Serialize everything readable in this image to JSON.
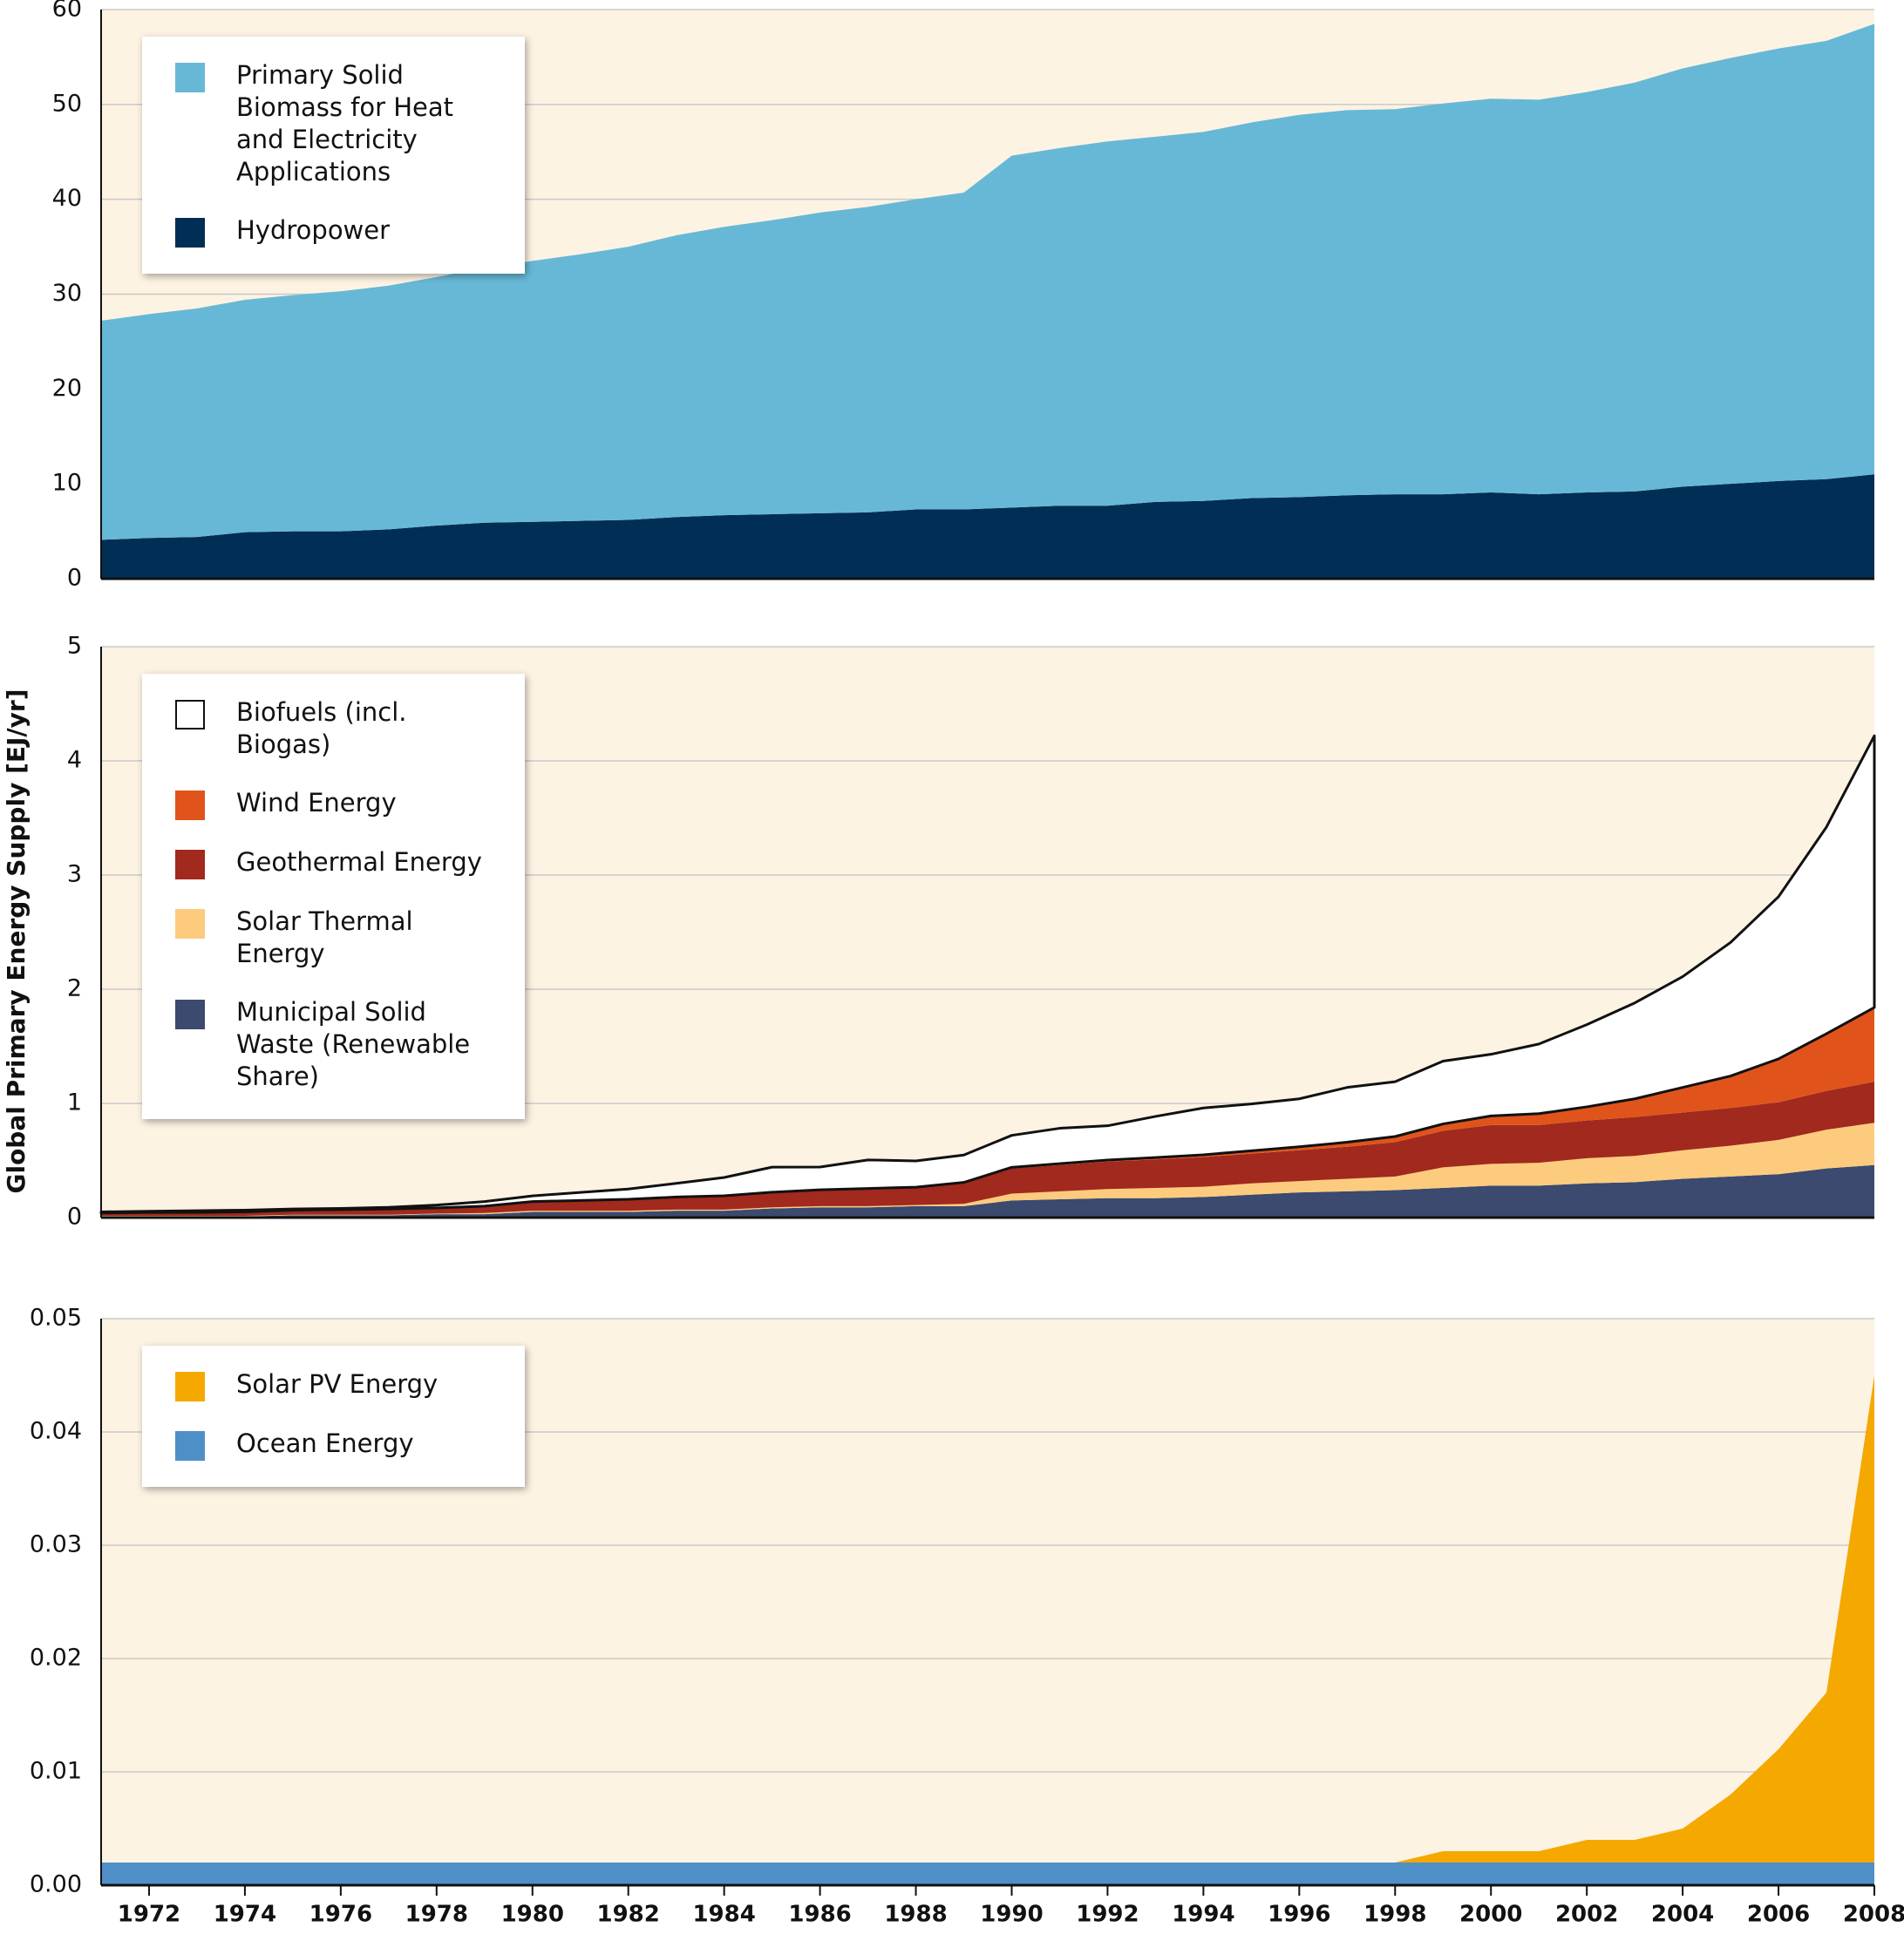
{
  "y_axis_label": "Global Primary Energy Supply [EJ/yr]",
  "chart_data": [
    {
      "type": "stacked_area",
      "legend": "upper left",
      "grid": true,
      "x": [
        1971,
        1972,
        1973,
        1974,
        1975,
        1976,
        1977,
        1978,
        1979,
        1980,
        1981,
        1982,
        1983,
        1984,
        1985,
        1986,
        1987,
        1988,
        1989,
        1990,
        1991,
        1992,
        1993,
        1994,
        1995,
        1996,
        1997,
        1998,
        1999,
        2000,
        2001,
        2002,
        2003,
        2004,
        2005,
        2006,
        2007,
        2008
      ],
      "xlim": [
        1971,
        2008
      ],
      "ylim": [
        0,
        60
      ],
      "yticks": [
        0,
        10,
        20,
        30,
        40,
        50,
        60
      ],
      "series": [
        {
          "name": "Hydropower",
          "color": "#002e55",
          "values": [
            4.1,
            4.3,
            4.4,
            4.9,
            5.0,
            5.0,
            5.2,
            5.6,
            5.9,
            6.0,
            6.1,
            6.2,
            6.5,
            6.7,
            6.8,
            6.9,
            7.0,
            7.3,
            7.3,
            7.5,
            7.7,
            7.7,
            8.1,
            8.2,
            8.5,
            8.6,
            8.8,
            8.9,
            8.9,
            9.1,
            8.9,
            9.1,
            9.2,
            9.7,
            10.0,
            10.3,
            10.5,
            11.0
          ]
        },
        {
          "name": "Primary Solid Biomass for Heat and Electricity Applications",
          "color": "#67b8d6",
          "values": [
            23.1,
            23.6,
            24.1,
            24.5,
            24.9,
            25.3,
            25.7,
            26.2,
            26.9,
            27.5,
            28.1,
            28.8,
            29.7,
            30.4,
            31.0,
            31.7,
            32.2,
            32.7,
            33.4,
            37.1,
            37.7,
            38.4,
            38.5,
            38.9,
            39.6,
            40.3,
            40.6,
            40.6,
            41.2,
            41.5,
            41.6,
            42.2,
            43.1,
            44.1,
            44.9,
            45.6,
            46.2,
            47.5
          ]
        }
      ]
    },
    {
      "type": "stacked_area",
      "legend": "upper left",
      "grid": true,
      "x": [
        1971,
        1972,
        1973,
        1974,
        1975,
        1976,
        1977,
        1978,
        1979,
        1980,
        1981,
        1982,
        1983,
        1984,
        1985,
        1986,
        1987,
        1988,
        1989,
        1990,
        1991,
        1992,
        1993,
        1994,
        1995,
        1996,
        1997,
        1998,
        1999,
        2000,
        2001,
        2002,
        2003,
        2004,
        2005,
        2006,
        2007,
        2008
      ],
      "xlim": [
        1971,
        2008
      ],
      "ylim": [
        0,
        5
      ],
      "yticks": [
        0,
        1,
        2,
        3,
        4,
        5
      ],
      "series": [
        {
          "name": "Municipal Solid Waste (Renewable Share)",
          "color": "#3b4a6e",
          "values": [
            0.01,
            0.01,
            0.01,
            0.01,
            0.02,
            0.02,
            0.02,
            0.03,
            0.03,
            0.05,
            0.05,
            0.05,
            0.06,
            0.06,
            0.08,
            0.09,
            0.09,
            0.1,
            0.1,
            0.15,
            0.16,
            0.17,
            0.17,
            0.18,
            0.2,
            0.22,
            0.23,
            0.24,
            0.26,
            0.28,
            0.28,
            0.3,
            0.31,
            0.34,
            0.36,
            0.38,
            0.43,
            0.46
          ]
        },
        {
          "name": "Solar Thermal Energy",
          "color": "#fdcb7e",
          "values": [
            0.005,
            0.005,
            0.005,
            0.005,
            0.005,
            0.005,
            0.005,
            0.005,
            0.01,
            0.01,
            0.01,
            0.01,
            0.01,
            0.01,
            0.01,
            0.01,
            0.01,
            0.01,
            0.02,
            0.06,
            0.07,
            0.08,
            0.09,
            0.09,
            0.1,
            0.1,
            0.11,
            0.12,
            0.18,
            0.19,
            0.2,
            0.22,
            0.23,
            0.25,
            0.27,
            0.3,
            0.34,
            0.37
          ]
        },
        {
          "name": "Geothermal Energy",
          "color": "#a1291d",
          "values": [
            0.025,
            0.03,
            0.03,
            0.035,
            0.04,
            0.045,
            0.05,
            0.05,
            0.06,
            0.08,
            0.09,
            0.1,
            0.11,
            0.12,
            0.13,
            0.14,
            0.15,
            0.15,
            0.18,
            0.22,
            0.23,
            0.24,
            0.25,
            0.26,
            0.26,
            0.27,
            0.28,
            0.3,
            0.32,
            0.34,
            0.33,
            0.33,
            0.34,
            0.33,
            0.33,
            0.33,
            0.34,
            0.36
          ]
        },
        {
          "name": "Wind Energy",
          "color": "#e0541b",
          "values": [
            0,
            0,
            0,
            0,
            0,
            0,
            0,
            0,
            0,
            0,
            0,
            0,
            0,
            0.001,
            0.002,
            0.003,
            0.005,
            0.006,
            0.008,
            0.01,
            0.012,
            0.014,
            0.016,
            0.02,
            0.025,
            0.03,
            0.04,
            0.05,
            0.06,
            0.08,
            0.1,
            0.12,
            0.16,
            0.22,
            0.28,
            0.38,
            0.5,
            0.65
          ]
        },
        {
          "name": "Biofuels (incl. Biogas)",
          "color": "#ffffff",
          "values": [
            0.01,
            0.01,
            0.015,
            0.015,
            0.01,
            0.01,
            0.015,
            0.025,
            0.04,
            0.05,
            0.07,
            0.09,
            0.12,
            0.16,
            0.22,
            0.2,
            0.25,
            0.23,
            0.24,
            0.28,
            0.31,
            0.3,
            0.36,
            0.41,
            0.41,
            0.42,
            0.48,
            0.48,
            0.55,
            0.54,
            0.61,
            0.72,
            0.84,
            0.97,
            1.17,
            1.42,
            1.81,
            2.38
          ]
        }
      ]
    },
    {
      "type": "stacked_area",
      "legend": "upper left",
      "grid": true,
      "x": [
        1971,
        1972,
        1973,
        1974,
        1975,
        1976,
        1977,
        1978,
        1979,
        1980,
        1981,
        1982,
        1983,
        1984,
        1985,
        1986,
        1987,
        1988,
        1989,
        1990,
        1991,
        1992,
        1993,
        1994,
        1995,
        1996,
        1997,
        1998,
        1999,
        2000,
        2001,
        2002,
        2003,
        2004,
        2005,
        2006,
        2007,
        2008
      ],
      "xlim": [
        1971,
        2008
      ],
      "ylim": [
        0,
        0.05
      ],
      "yticks": [
        {
          "value": 0,
          "label": "0.00"
        },
        0.01,
        0.02,
        0.03,
        0.04,
        0.05
      ],
      "xticks": [
        1972,
        1974,
        1976,
        1978,
        1980,
        1982,
        1984,
        1986,
        1988,
        1990,
        1992,
        1994,
        1996,
        1998,
        2000,
        2002,
        2004,
        2006,
        2008
      ],
      "series": [
        {
          "name": "Ocean Energy",
          "color": "#4f8fc7",
          "values": [
            0.002,
            0.002,
            0.002,
            0.002,
            0.002,
            0.002,
            0.002,
            0.002,
            0.002,
            0.002,
            0.002,
            0.002,
            0.002,
            0.002,
            0.002,
            0.002,
            0.002,
            0.002,
            0.002,
            0.002,
            0.002,
            0.002,
            0.002,
            0.002,
            0.002,
            0.002,
            0.002,
            0.002,
            0.002,
            0.002,
            0.002,
            0.002,
            0.002,
            0.002,
            0.002,
            0.002,
            0.002,
            0.002
          ]
        },
        {
          "name": "Solar PV Energy",
          "color": "#f5a800",
          "values": [
            0,
            0,
            0,
            0,
            0,
            0,
            0,
            0,
            0,
            0,
            0,
            0,
            0,
            0,
            0,
            0,
            0,
            0,
            0,
            0,
            0,
            0,
            0,
            0,
            0,
            0,
            0,
            0,
            0.001,
            0.001,
            0.001,
            0.002,
            0.002,
            0.003,
            0.006,
            0.01,
            0.015,
            0.043
          ]
        }
      ]
    }
  ]
}
